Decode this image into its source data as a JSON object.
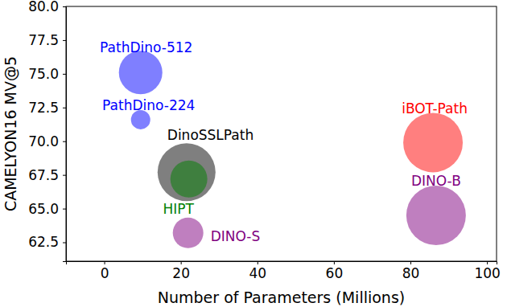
{
  "chart_data": {
    "type": "scatter",
    "x_label": "Number of Parameters (Millions)",
    "y_label": "CAMELYON16 MV@5",
    "labels": [
      "PathDino-512",
      "PathDino-224",
      "DinoSSLPath",
      "HIPT",
      "DINO-S",
      "iBOT-Path",
      "DINO-B"
    ],
    "x": [
      9.5,
      9.5,
      21.5,
      22.1,
      21.9,
      85.9,
      86.7
    ],
    "values": [
      75.1,
      71.6,
      67.7,
      67.2,
      63.2,
      69.9,
      64.5
    ],
    "sizes": [
      729,
      144,
      1296,
      529,
      361,
      1369,
      1369
    ],
    "colors": [
      "blue",
      "blue",
      "black",
      "green",
      "purple",
      "red",
      "purple"
    ],
    "xlim": [
      -10,
      102.5
    ],
    "xticks": [
      0,
      20,
      40,
      60,
      80,
      100
    ],
    "ylim": [
      61.1,
      80
    ],
    "yticks": [
      62.5,
      {
        "value": 65,
        "label": "65.0"
      },
      67.5,
      {
        "value": 70,
        "label": "70.0"
      },
      72.5,
      {
        "value": 75,
        "label": "75.0"
      },
      77.5,
      {
        "value": 80,
        "label": "80.0"
      }
    ],
    "grid": false
  }
}
